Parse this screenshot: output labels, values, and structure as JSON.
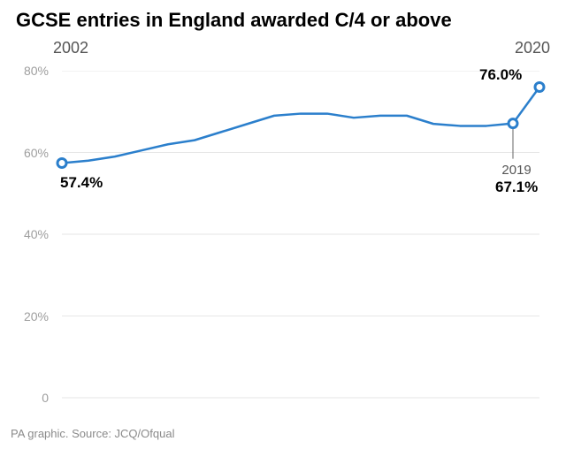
{
  "title": "GCSE entries in England awarded C/4 or above",
  "year_start_label": "2002",
  "year_end_label": "2020",
  "source_text": "PA graphic. Source: JCQ/Ofqual",
  "chart": {
    "type": "line",
    "x_start": 2002,
    "x_end": 2020,
    "ylim": [
      0,
      80
    ],
    "ytick_step": 20,
    "ytick_labels": [
      "0",
      "20%",
      "40%",
      "60%",
      "80%"
    ],
    "grid_color": "#e6e6e6",
    "axis_label_color": "#9e9e9e",
    "axis_label_fontsize": 14,
    "line_color": "#2b7fcc",
    "line_width": 2.5,
    "marker_stroke": "#2b7fcc",
    "marker_fill": "#ffffff",
    "marker_stroke_width": 3,
    "marker_radius": 5,
    "callout_line_color": "#666666",
    "background_color": "#ffffff",
    "series": [
      {
        "x": 2002,
        "y": 57.4
      },
      {
        "x": 2003,
        "y": 58.0
      },
      {
        "x": 2004,
        "y": 59.0
      },
      {
        "x": 2005,
        "y": 60.5
      },
      {
        "x": 2006,
        "y": 62.0
      },
      {
        "x": 2007,
        "y": 63.0
      },
      {
        "x": 2008,
        "y": 65.0
      },
      {
        "x": 2009,
        "y": 67.0
      },
      {
        "x": 2010,
        "y": 69.0
      },
      {
        "x": 2011,
        "y": 69.5
      },
      {
        "x": 2012,
        "y": 69.5
      },
      {
        "x": 2013,
        "y": 68.5
      },
      {
        "x": 2014,
        "y": 69.0
      },
      {
        "x": 2015,
        "y": 69.0
      },
      {
        "x": 2016,
        "y": 67.0
      },
      {
        "x": 2017,
        "y": 66.5
      },
      {
        "x": 2018,
        "y": 66.5
      },
      {
        "x": 2019,
        "y": 67.1
      },
      {
        "x": 2020,
        "y": 76.0
      }
    ],
    "markers_at": [
      2002,
      2019,
      2020
    ],
    "callouts": {
      "first": {
        "label": "57.4%"
      },
      "mid": {
        "year": "2019",
        "label": "67.1%"
      },
      "last": {
        "label": "76.0%"
      }
    }
  }
}
